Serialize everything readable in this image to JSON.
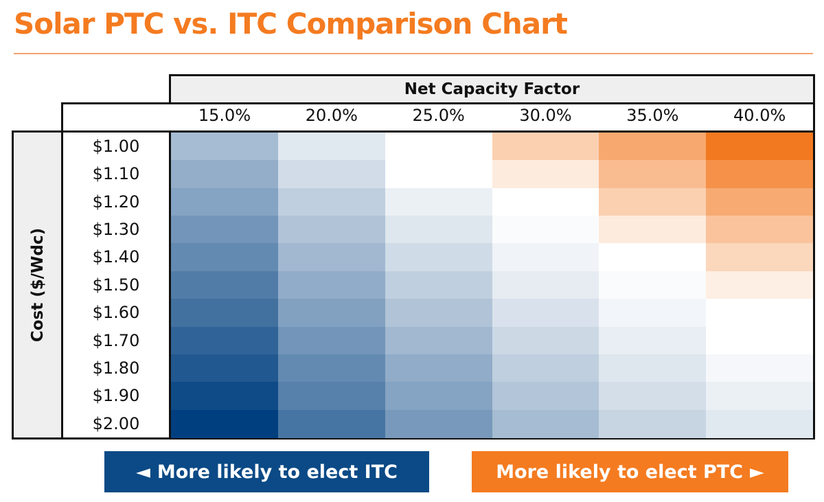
{
  "chart_data": {
    "type": "heatmap",
    "title": "Solar PTC vs. ITC Comparison Chart",
    "xlabel": "Net Capacity Factor",
    "ylabel": "Cost ($/Wdc)",
    "x_categories": [
      "15.0%",
      "20.0%",
      "25.0%",
      "30.0%",
      "35.0%",
      "40.0%"
    ],
    "y_categories": [
      "$1.00",
      "$1.10",
      "$1.20",
      "$1.30",
      "$1.40",
      "$1.50",
      "$1.60",
      "$1.70",
      "$1.80",
      "$1.90",
      "$2.00"
    ],
    "value_scale": "relative preference: negative = more likely ITC (blue), positive = more likely PTC (orange)",
    "values": [
      [
        -0.35,
        -0.12,
        0.0,
        0.35,
        0.65,
        1.0
      ],
      [
        -0.42,
        -0.18,
        0.0,
        0.15,
        0.5,
        0.82
      ],
      [
        -0.48,
        -0.25,
        -0.08,
        0.0,
        0.35,
        0.63
      ],
      [
        -0.55,
        -0.31,
        -0.13,
        -0.02,
        0.15,
        0.45
      ],
      [
        -0.61,
        -0.37,
        -0.19,
        -0.06,
        0.0,
        0.3
      ],
      [
        -0.68,
        -0.43,
        -0.25,
        -0.1,
        -0.02,
        0.12
      ],
      [
        -0.74,
        -0.49,
        -0.31,
        -0.15,
        -0.05,
        0.0
      ],
      [
        -0.81,
        -0.55,
        -0.37,
        -0.2,
        -0.09,
        0.0
      ],
      [
        -0.87,
        -0.61,
        -0.43,
        -0.25,
        -0.13,
        -0.04
      ],
      [
        -0.94,
        -0.66,
        -0.48,
        -0.3,
        -0.17,
        -0.08
      ],
      [
        -1.0,
        -0.72,
        -0.53,
        -0.35,
        -0.22,
        -0.12
      ]
    ],
    "colors": {
      "itc": "#003f7f",
      "ptc": "#f37920",
      "neutral": "#ffffff"
    }
  },
  "legend": {
    "itc_label": "More likely to elect ITC",
    "ptc_label": "More likely to elect PTC",
    "left_arrow": "◄",
    "right_arrow": "►"
  }
}
